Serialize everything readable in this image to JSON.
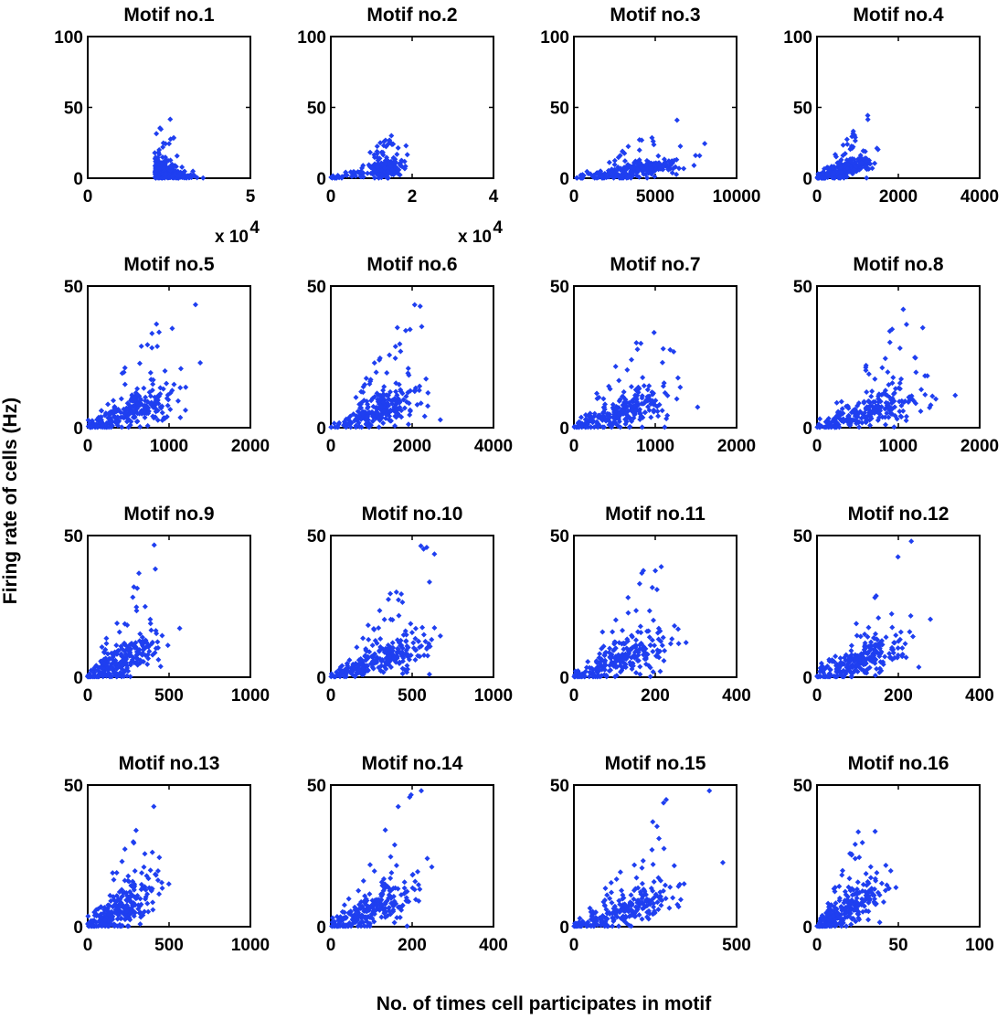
{
  "figure": {
    "ylabel": "Firing rate of cells (Hz)",
    "xlabel": "No. of times cell participates in motif",
    "marker_color": "#1f3ff0"
  },
  "chart_data": [
    {
      "type": "scatter",
      "title": "Motif no.1",
      "xlim": [
        0,
        5
      ],
      "ylim": [
        0,
        100
      ],
      "xticks": [
        "0",
        "5"
      ],
      "xtickvals": [
        0,
        5
      ],
      "yticks": [
        "0",
        "50",
        "100"
      ],
      "ytickvals": [
        0,
        50,
        100
      ],
      "exponent_label": "x 10",
      "exponent_power": "4",
      "x_center": 2.6,
      "x_spread": 0.9,
      "y_peak": 48,
      "trend": "decreasing",
      "seed": 11
    },
    {
      "type": "scatter",
      "title": "Motif no.2",
      "xlim": [
        0,
        4
      ],
      "ylim": [
        0,
        100
      ],
      "xticks": [
        "0",
        "2",
        "4"
      ],
      "xtickvals": [
        0,
        2,
        4
      ],
      "yticks": [
        "0",
        "50",
        "100"
      ],
      "ytickvals": [
        0,
        50,
        100
      ],
      "exponent_label": "x 10",
      "exponent_power": "4",
      "x_center": 1.35,
      "x_spread": 0.45,
      "y_peak": 48,
      "trend": "increasing",
      "seed": 23
    },
    {
      "type": "scatter",
      "title": "Motif no.3",
      "xlim": [
        0,
        10000
      ],
      "ylim": [
        0,
        100
      ],
      "xticks": [
        "0",
        "5000",
        "10000"
      ],
      "xtickvals": [
        0,
        5000,
        10000
      ],
      "yticks": [
        "0",
        "50",
        "100"
      ],
      "ytickvals": [
        0,
        50,
        100
      ],
      "exponent_label": "",
      "exponent_power": "",
      "x_center": 4200,
      "x_spread": 2600,
      "y_peak": 48,
      "trend": "increasing",
      "seed": 37
    },
    {
      "type": "scatter",
      "title": "Motif no.4",
      "xlim": [
        0,
        4000
      ],
      "ylim": [
        0,
        100
      ],
      "xticks": [
        "0",
        "2000",
        "4000"
      ],
      "xtickvals": [
        0,
        2000,
        4000
      ],
      "yticks": [
        "0",
        "50",
        "100"
      ],
      "ytickvals": [
        0,
        50,
        100
      ],
      "exponent_label": "",
      "exponent_power": "",
      "x_center": 750,
      "x_spread": 700,
      "y_peak": 48,
      "trend": "increasing",
      "seed": 41
    },
    {
      "type": "scatter",
      "title": "Motif no.5",
      "xlim": [
        0,
        2000
      ],
      "ylim": [
        0,
        50
      ],
      "xticks": [
        "0",
        "1000",
        "2000"
      ],
      "xtickvals": [
        0,
        1000,
        2000
      ],
      "yticks": [
        "0",
        "50"
      ],
      "ytickvals": [
        0,
        50
      ],
      "exponent_label": "",
      "exponent_power": "",
      "x_center": 600,
      "x_spread": 550,
      "y_peak": 48,
      "trend": "increasing",
      "seed": 53
    },
    {
      "type": "scatter",
      "title": "Motif no.6",
      "xlim": [
        0,
        4000
      ],
      "ylim": [
        0,
        50
      ],
      "xticks": [
        "0",
        "2000",
        "4000"
      ],
      "xtickvals": [
        0,
        2000,
        4000
      ],
      "yticks": [
        "0",
        "50"
      ],
      "ytickvals": [
        0,
        50
      ],
      "exponent_label": "",
      "exponent_power": "",
      "x_center": 1300,
      "x_spread": 1100,
      "y_peak": 48,
      "trend": "increasing",
      "seed": 67
    },
    {
      "type": "scatter",
      "title": "Motif no.7",
      "xlim": [
        0,
        2000
      ],
      "ylim": [
        0,
        50
      ],
      "xticks": [
        "0",
        "1000",
        "2000"
      ],
      "xtickvals": [
        0,
        1000,
        2000
      ],
      "yticks": [
        "0",
        "50"
      ],
      "ytickvals": [
        0,
        50
      ],
      "exponent_label": "",
      "exponent_power": "",
      "x_center": 650,
      "x_spread": 600,
      "y_peak": 48,
      "trend": "increasing",
      "seed": 71
    },
    {
      "type": "scatter",
      "title": "Motif no.8",
      "xlim": [
        0,
        2000
      ],
      "ylim": [
        0,
        50
      ],
      "xticks": [
        "0",
        "1000",
        "2000"
      ],
      "xtickvals": [
        0,
        1000,
        2000
      ],
      "yticks": [
        "0",
        "50"
      ],
      "ytickvals": [
        0,
        50
      ],
      "exponent_label": "",
      "exponent_power": "",
      "x_center": 700,
      "x_spread": 700,
      "y_peak": 48,
      "trend": "increasing",
      "seed": 83
    },
    {
      "type": "scatter",
      "title": "Motif no.9",
      "xlim": [
        0,
        1000
      ],
      "ylim": [
        0,
        50
      ],
      "xticks": [
        "0",
        "500",
        "1000"
      ],
      "xtickvals": [
        0,
        500,
        1000
      ],
      "yticks": [
        "0",
        "50"
      ],
      "ytickvals": [
        0,
        50
      ],
      "exponent_label": "",
      "exponent_power": "",
      "x_center": 230,
      "x_spread": 260,
      "y_peak": 48,
      "trend": "increasing",
      "seed": 97
    },
    {
      "type": "scatter",
      "title": "Motif no.10",
      "xlim": [
        0,
        1000
      ],
      "ylim": [
        0,
        50
      ],
      "xticks": [
        "0",
        "500",
        "1000"
      ],
      "xtickvals": [
        0,
        500,
        1000
      ],
      "yticks": [
        "0",
        "50"
      ],
      "ytickvals": [
        0,
        50
      ],
      "exponent_label": "",
      "exponent_power": "",
      "x_center": 330,
      "x_spread": 320,
      "y_peak": 48,
      "trend": "increasing",
      "seed": 101
    },
    {
      "type": "scatter",
      "title": "Motif no.11",
      "xlim": [
        0,
        400
      ],
      "ylim": [
        0,
        50
      ],
      "xticks": [
        "0",
        "200",
        "400"
      ],
      "xtickvals": [
        0,
        200,
        400
      ],
      "yticks": [
        "0",
        "50"
      ],
      "ytickvals": [
        0,
        50
      ],
      "exponent_label": "",
      "exponent_power": "",
      "x_center": 120,
      "x_spread": 120,
      "y_peak": 48,
      "trend": "increasing",
      "seed": 113
    },
    {
      "type": "scatter",
      "title": "Motif no.12",
      "xlim": [
        0,
        400
      ],
      "ylim": [
        0,
        50
      ],
      "xticks": [
        "0",
        "200",
        "400"
      ],
      "xtickvals": [
        0,
        200,
        400
      ],
      "yticks": [
        "0",
        "50"
      ],
      "ytickvals": [
        0,
        50
      ],
      "exponent_label": "",
      "exponent_power": "",
      "x_center": 120,
      "x_spread": 110,
      "y_peak": 48,
      "trend": "increasing",
      "seed": 127
    },
    {
      "type": "scatter",
      "title": "Motif no.13",
      "xlim": [
        0,
        1000
      ],
      "ylim": [
        0,
        50
      ],
      "xticks": [
        "0",
        "500",
        "1000"
      ],
      "xtickvals": [
        0,
        500,
        1000
      ],
      "yticks": [
        "0",
        "50"
      ],
      "ytickvals": [
        0,
        50
      ],
      "exponent_label": "",
      "exponent_power": "",
      "x_center": 220,
      "x_spread": 210,
      "y_peak": 48,
      "trend": "increasing",
      "seed": 131
    },
    {
      "type": "scatter",
      "title": "Motif no.14",
      "xlim": [
        0,
        400
      ],
      "ylim": [
        0,
        50
      ],
      "xticks": [
        "0",
        "200",
        "400"
      ],
      "xtickvals": [
        0,
        200,
        400
      ],
      "yticks": [
        "0",
        "50"
      ],
      "ytickvals": [
        0,
        50
      ],
      "exponent_label": "",
      "exponent_power": "",
      "x_center": 110,
      "x_spread": 110,
      "y_peak": 48,
      "trend": "increasing",
      "seed": 139
    },
    {
      "type": "scatter",
      "title": "Motif no.15",
      "xlim": [
        0,
        500
      ],
      "ylim": [
        0,
        50
      ],
      "xticks": [
        "0",
        "500"
      ],
      "xtickvals": [
        0,
        500
      ],
      "yticks": [
        "0",
        "50"
      ],
      "ytickvals": [
        0,
        50
      ],
      "exponent_label": "",
      "exponent_power": "",
      "x_center": 170,
      "x_spread": 190,
      "y_peak": 48,
      "trend": "increasing",
      "seed": 149
    },
    {
      "type": "scatter",
      "title": "Motif no.16",
      "xlim": [
        0,
        100
      ],
      "ylim": [
        0,
        50
      ],
      "xticks": [
        "0",
        "50",
        "100"
      ],
      "xtickvals": [
        0,
        50,
        100
      ],
      "yticks": [
        "0",
        "50"
      ],
      "ytickvals": [
        0,
        50
      ],
      "exponent_label": "",
      "exponent_power": "",
      "x_center": 20,
      "x_spread": 28,
      "y_peak": 48,
      "trend": "increasing",
      "seed": 157
    }
  ]
}
